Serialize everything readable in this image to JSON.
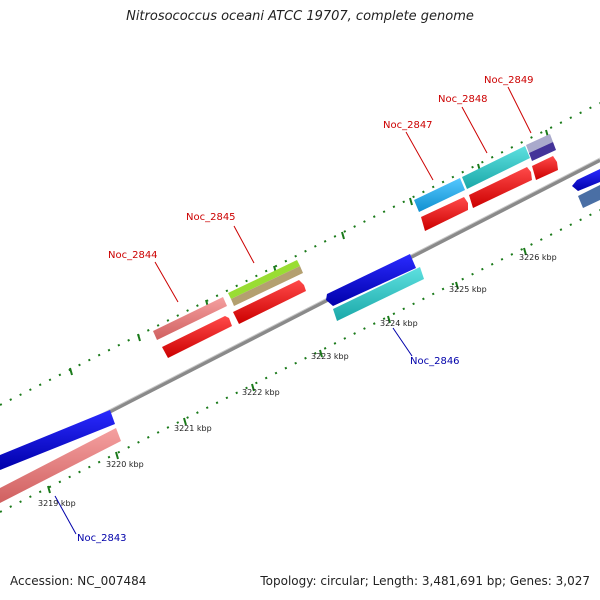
{
  "title": "Nitrosococcus oceani ATCC 19707, complete genome",
  "accession_text": "Accession: NC_007484",
  "stats_text": "Topology: circular; Length: 3,481,691 bp; Genes: 3,027",
  "ticks": [
    {
      "label": "3219 kbp"
    },
    {
      "label": "3220 kbp"
    },
    {
      "label": "3221 kbp"
    },
    {
      "label": "3222 kbp"
    },
    {
      "label": "3223 kbp"
    },
    {
      "label": "3224 kbp"
    },
    {
      "label": "3225 kbp"
    },
    {
      "label": "3226 kbp"
    }
  ],
  "genes": [
    {
      "name": "Noc_2843",
      "strand": "-",
      "color": "#0000cc"
    },
    {
      "name": "Noc_2844",
      "strand": "+",
      "color": "#ff0000"
    },
    {
      "name": "Noc_2845",
      "strand": "+",
      "color": "#ff0000"
    },
    {
      "name": "Noc_2846",
      "strand": "-",
      "color": "#0000cc"
    },
    {
      "name": "Noc_2847",
      "strand": "+",
      "color": "#ff0000"
    },
    {
      "name": "Noc_2848",
      "strand": "+",
      "color": "#ff0000"
    },
    {
      "name": "Noc_2849",
      "strand": "+",
      "color": "#ff0000"
    }
  ],
  "colors": {
    "forward_label": "#cc0000",
    "reverse_label": "#0000aa",
    "backbone": "#808080",
    "tick": "#1a7a1a",
    "cog_pink": "#f08080",
    "cog_lime": "#99dd33",
    "cog_cyan": "#33cccc",
    "cog_sky": "#22aaee",
    "cog_slate": "#4a6fa5",
    "cog_lavender": "#9999cc"
  }
}
